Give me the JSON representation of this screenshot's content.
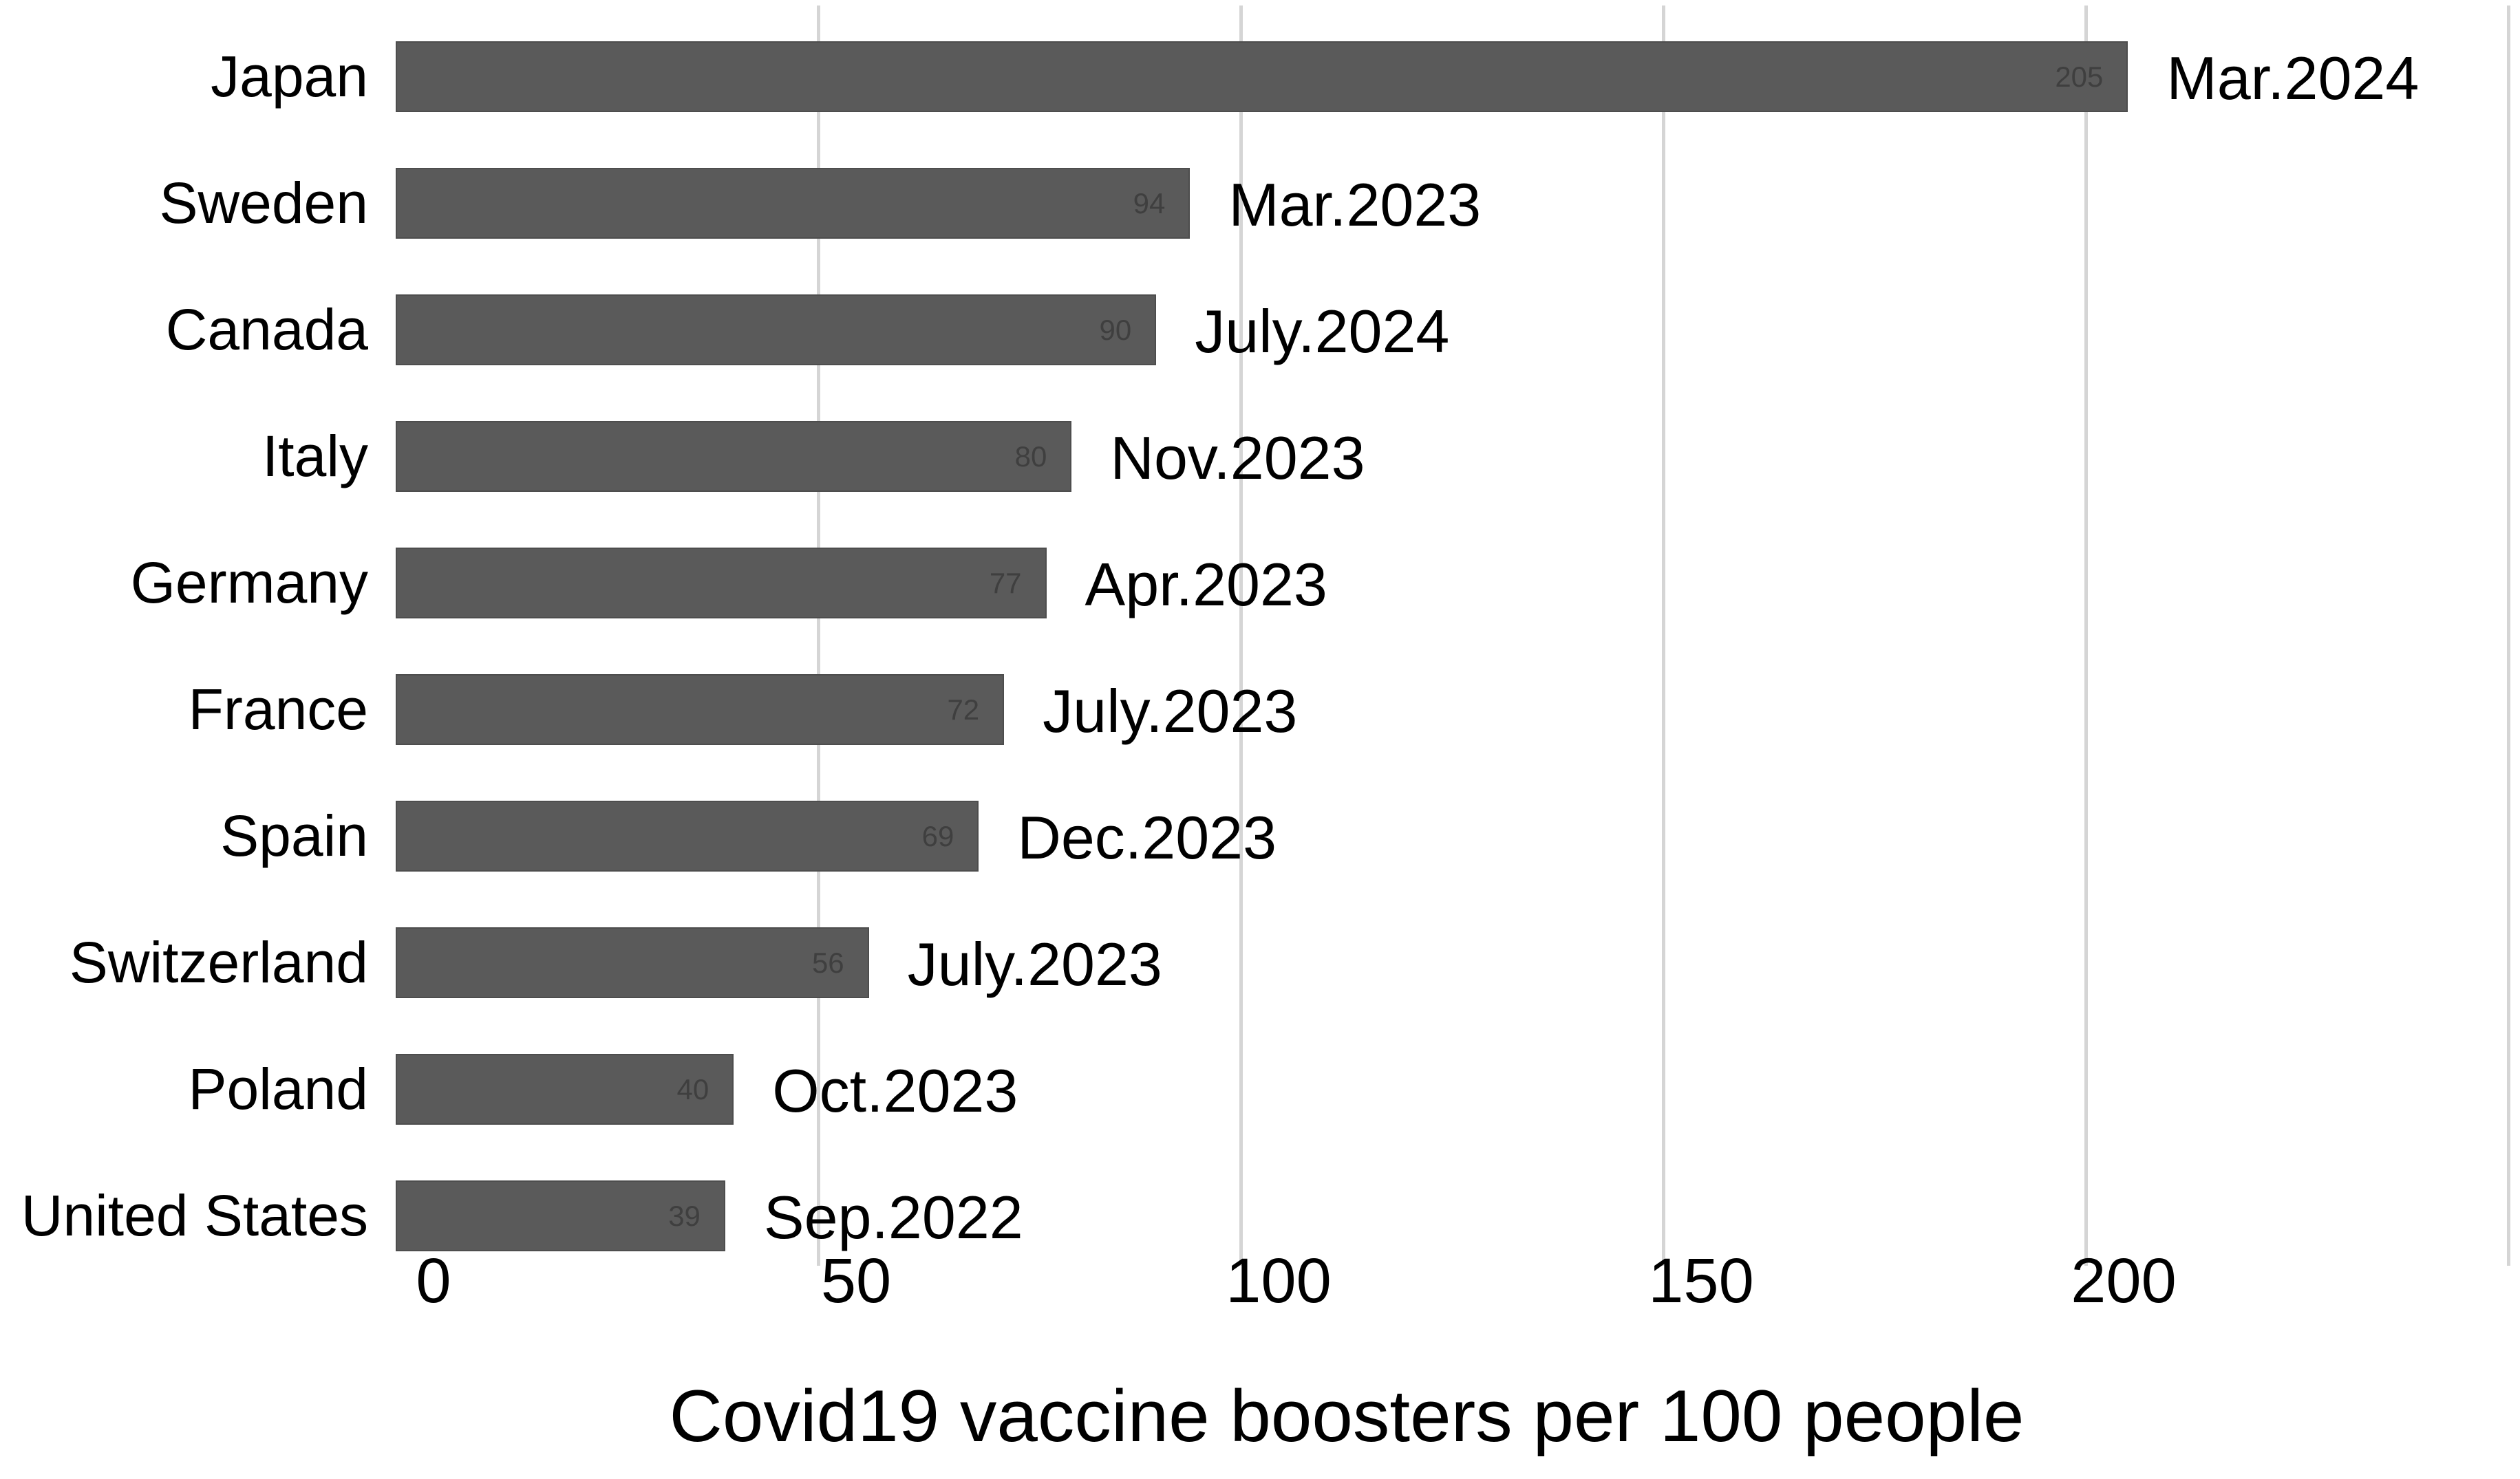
{
  "chart_data": {
    "type": "bar",
    "orientation": "horizontal",
    "title": "Covid19 vaccine boosters per 100 people",
    "xlabel": "Covid19 vaccine boosters per 100 people",
    "ylabel": "",
    "categories": [
      "Japan",
      "Sweden",
      "Canada",
      "Italy",
      "Germany",
      "France",
      "Spain",
      "Switzerland",
      "Poland",
      "United States"
    ],
    "values": [
      205,
      94,
      90,
      80,
      77,
      72,
      69,
      56,
      40,
      39
    ],
    "annotations": [
      "Mar.2024",
      "Mar.2023",
      "July.2024",
      "Nov.2023",
      "Apr.2023",
      "July.2023",
      "Dec.2023",
      "July.2023",
      "Oct.2023",
      "Sep.2022"
    ],
    "x_ticks": [
      0,
      50,
      100,
      150,
      200
    ],
    "gridline_values": [
      50,
      100,
      150,
      200,
      250
    ],
    "xlim": [
      0,
      250
    ],
    "grid": true,
    "legend": false,
    "bar_color": "#5a5a5a",
    "bar_border_color": "#4d4d4d",
    "value_label_color": "#3f3f3f",
    "gridline_color": "#d5d5d5",
    "text_color": "#000000",
    "background_color": "#ffffff"
  }
}
